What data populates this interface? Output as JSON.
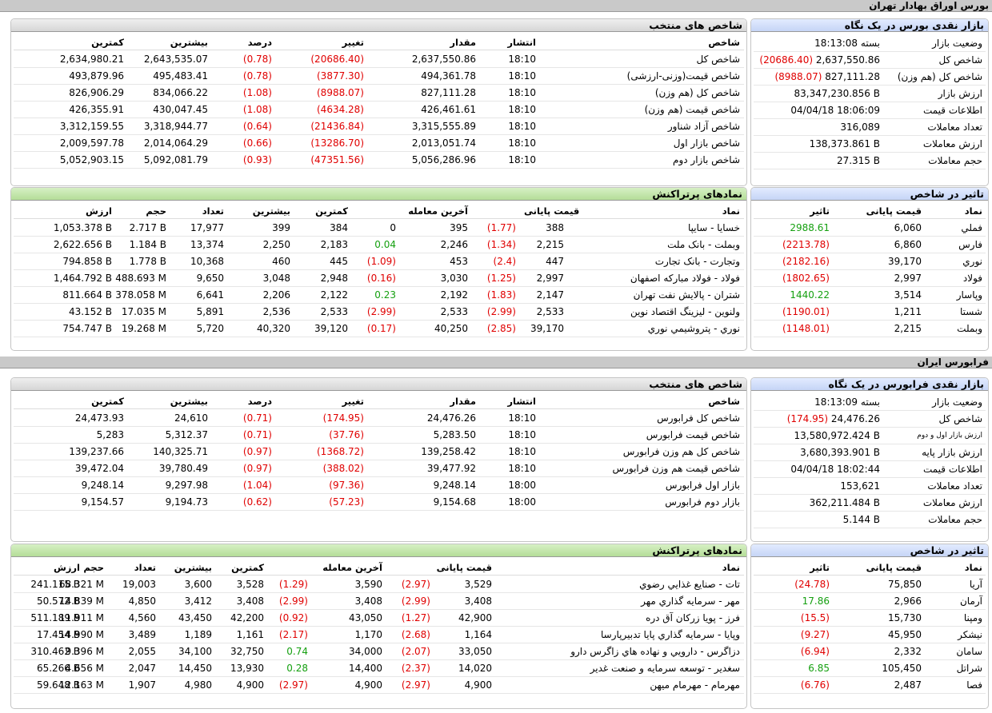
{
  "sections": [
    {
      "band_title": "بورس اوراق بهادار تهران",
      "snapshot": {
        "title": "بازار نقدی بورس در یک نگاه",
        "rows": [
          {
            "label": "وضعیت بازار",
            "value": "بسته 18:13:08"
          },
          {
            "label": "شاخص کل",
            "value": "2,637,550.86",
            "change": "(20686.40)"
          },
          {
            "label": "شاخص کل (هم وزن)",
            "value": "827,111.28",
            "change": "(8988.07)"
          },
          {
            "label": "ارزش بازار",
            "value": "83,347,230.856 B"
          },
          {
            "label": "اطلاعات قیمت",
            "value": "04/04/18 18:06:09"
          },
          {
            "label": "تعداد معاملات",
            "value": "316,089"
          },
          {
            "label": "ارزش معاملات",
            "value": "138,373.861 B"
          },
          {
            "label": "حجم معاملات",
            "value": "27.315 B"
          }
        ]
      },
      "indices": {
        "title": "شاخص های منتخب",
        "headers": [
          "شاخص",
          "انتشار",
          "مقدار",
          "تغییر",
          "درصد",
          "بیشترین",
          "کمترین"
        ],
        "rows": [
          [
            "شاخص کل",
            "18:10",
            "2,637,550.86",
            "(20686.40)",
            "(0.78)",
            "2,643,535.07",
            "2,634,980.21"
          ],
          [
            "شاخص قیمت(وزنی-ارزشی)",
            "18:10",
            "494,361.78",
            "(3877.30)",
            "(0.78)",
            "495,483.41",
            "493,879.96"
          ],
          [
            "شاخص کل (هم وزن)",
            "18:10",
            "827,111.28",
            "(8988.07)",
            "(1.08)",
            "834,066.22",
            "826,906.29"
          ],
          [
            "شاخص قیمت (هم وزن)",
            "18:10",
            "426,461.61",
            "(4634.28)",
            "(1.08)",
            "430,047.45",
            "426,355.91"
          ],
          [
            "شاخص آزاد شناور",
            "18:10",
            "3,315,555.89",
            "(21436.84)",
            "(0.64)",
            "3,318,944.77",
            "3,312,159.55"
          ],
          [
            "شاخص بازار اول",
            "18:10",
            "2,013,051.74",
            "(13286.70)",
            "(0.66)",
            "2,014,064.29",
            "2,009,597.78"
          ],
          [
            "شاخص بازار دوم",
            "18:10",
            "5,056,286.96",
            "(47351.56)",
            "(0.93)",
            "5,092,081.79",
            "5,052,903.15"
          ]
        ]
      },
      "impact": {
        "title": "تاثیر در شاخص",
        "headers": [
          "نماد",
          "قیمت پایانی",
          "تاثیر"
        ],
        "rows": [
          [
            "فملي",
            "6,060",
            "2988.61"
          ],
          [
            "فارس",
            "6,860",
            "(2213.78)"
          ],
          [
            "نوري",
            "39,170",
            "(2182.16)"
          ],
          [
            "فولاد",
            "2,997",
            "(1802.65)"
          ],
          [
            "وپاسار",
            "3,514",
            "1440.22"
          ],
          [
            "شستا",
            "1,211",
            "(1190.01)"
          ],
          [
            "وبملت",
            "2,215",
            "(1148.01)"
          ]
        ]
      },
      "active": {
        "title": "نمادهای پرتراکنش",
        "headers": [
          "نماد",
          "قیمت پایانی",
          "",
          "آخرین معامله",
          "",
          "کمترین",
          "بیشترین",
          "تعداد",
          "حجم",
          "ارزش"
        ],
        "rows": [
          [
            "خسایا - سایپا",
            "388",
            "(1.77)",
            "395",
            "0",
            "384",
            "399",
            "17,977",
            "2.717 B",
            "1,053.378 B"
          ],
          [
            "وبملت - بانک ملت",
            "2,215",
            "(1.34)",
            "2,246",
            "0.04",
            "2,183",
            "2,250",
            "13,374",
            "1.184 B",
            "2,622.656 B"
          ],
          [
            "وتجارت - بانک تجارت",
            "447",
            "(2.4)",
            "453",
            "(1.09)",
            "445",
            "460",
            "10,368",
            "1.778 B",
            "794.858 B"
          ],
          [
            "فولاد - فولاد مبارکه اصفهان",
            "2,997",
            "(1.25)",
            "3,030",
            "(0.16)",
            "2,948",
            "3,048",
            "9,650",
            "488.693 M",
            "1,464.792 B"
          ],
          [
            "شتران - پالایش نفت تهران",
            "2,147",
            "(1.83)",
            "2,192",
            "0.23",
            "2,122",
            "2,206",
            "6,641",
            "378.058 M",
            "811.664 B"
          ],
          [
            "ولنوین - لیزینگ اقتصاد نوین",
            "2,533",
            "(2.99)",
            "2,533",
            "(2.99)",
            "2,533",
            "2,536",
            "5,891",
            "17.035 M",
            "43.152 B"
          ],
          [
            "نوري - پتروشیمي نوري",
            "39,170",
            "(2.85)",
            "40,250",
            "(0.17)",
            "39,120",
            "40,320",
            "5,720",
            "19.268 M",
            "754.747 B"
          ]
        ]
      }
    },
    {
      "band_title": "فرابورس ایران",
      "snapshot": {
        "title": "بازار نقدی فرابورس در یک نگاه",
        "rows": [
          {
            "label": "وضعیت بازار",
            "value": "بسته 18:13:09"
          },
          {
            "label": "شاخص کل",
            "value": "24,476.26",
            "change": "(174.95)"
          },
          {
            "label": "ارزش بازار اول و دوم",
            "value": "13,580,972.424 B"
          },
          {
            "label": "ارزش بازار پایه",
            "value": "3,680,393.901 B"
          },
          {
            "label": "اطلاعات قیمت",
            "value": "04/04/18 18:02:44"
          },
          {
            "label": "تعداد معاملات",
            "value": "153,621"
          },
          {
            "label": "ارزش معاملات",
            "value": "362,211.484 B"
          },
          {
            "label": "حجم معاملات",
            "value": "5.144 B"
          }
        ]
      },
      "indices": {
        "title": "شاخص های منتخب",
        "headers": [
          "شاخص",
          "انتشار",
          "مقدار",
          "تغییر",
          "درصد",
          "بیشترین",
          "کمترین"
        ],
        "rows": [
          [
            "شاخص کل فرابورس",
            "18:10",
            "24,476.26",
            "(174.95)",
            "(0.71)",
            "24,610",
            "24,473.93"
          ],
          [
            "شاخص قیمت فرابورس",
            "18:10",
            "5,283.50",
            "(37.76)",
            "(0.71)",
            "5,312.37",
            "5,283"
          ],
          [
            "شاخص کل هم وزن فرابورس",
            "18:10",
            "139,258.42",
            "(1368.72)",
            "(0.97)",
            "140,325.71",
            "139,237.66"
          ],
          [
            "شاخص قیمت هم وزن فرابورس",
            "18:10",
            "39,477.92",
            "(388.02)",
            "(0.97)",
            "39,780.49",
            "39,472.04"
          ],
          [
            "بازار اول فرابورس",
            "18:00",
            "9,248.14",
            "(97.36)",
            "(1.04)",
            "9,297.98",
            "9,248.14"
          ],
          [
            "بازار دوم فرابورس",
            "18:00",
            "9,154.68",
            "(57.23)",
            "(0.62)",
            "9,194.73",
            "9,154.57"
          ]
        ]
      },
      "impact": {
        "title": "تاثیر در شاخص",
        "headers": [
          "نماد",
          "قیمت پایانی",
          "تاثیر"
        ],
        "rows": [
          [
            "آريا",
            "75,850",
            "(24.78)"
          ],
          [
            "آرمان",
            "2,966",
            "17.86"
          ],
          [
            "ومپنا",
            "15,730",
            "(15.5)"
          ],
          [
            "نيشکر",
            "45,950",
            "(9.27)"
          ],
          [
            "سامان",
            "2,332",
            "(6.94)"
          ],
          [
            "شراتل",
            "105,450",
            "6.85"
          ],
          [
            "فصا",
            "2,487",
            "(6.76)"
          ]
        ]
      },
      "active": {
        "title": "نمادهای پرتراکنش",
        "headers": [
          "نماد",
          "قیمت پایانی",
          "",
          "آخرین معامله",
          "",
          "کمترین",
          "بیشترین",
          "تعداد",
          "حجم",
          "ارزش"
        ],
        "rows": [
          [
            "تات - صنایع غذایي رضوي",
            "3,529",
            "(2.97)",
            "3,590",
            "(1.29)",
            "3,528",
            "3,600",
            "19,003",
            "68.321 M",
            "241.115 B"
          ],
          [
            "مهر - سرمایه گذاري مهر",
            "3,408",
            "(2.99)",
            "3,408",
            "(2.99)",
            "3,408",
            "3,412",
            "4,850",
            "14.839 M",
            "50.572 B"
          ],
          [
            "فرز - پویا زرکان آق دره",
            "42,900",
            "(1.27)",
            "43,050",
            "(0.92)",
            "42,200",
            "43,450",
            "4,560",
            "11.911 M",
            "511.189 B"
          ],
          [
            "وپایا - سرمایه گذاري پایا تدبیرپارسا",
            "1,164",
            "(2.68)",
            "1,170",
            "(2.17)",
            "1,161",
            "1,189",
            "3,489",
            "14.990 M",
            "17.454 B"
          ],
          [
            "دزاگرس - دارویي و نهاده هاي زاگرس دارو",
            "33,050",
            "(2.07)",
            "34,000",
            "0.74",
            "32,750",
            "34,100",
            "2,055",
            "9.396 M",
            "310.462 B"
          ],
          [
            "سغدیر - توسعه سرمایه و صنعت غدیر",
            "14,020",
            "(2.37)",
            "14,400",
            "0.28",
            "13,930",
            "14,450",
            "2,047",
            "4.656 M",
            "65.266 B"
          ],
          [
            "مهرمام - مهرمام میهن",
            "4,900",
            "(2.97)",
            "4,900",
            "(2.97)",
            "4,900",
            "4,980",
            "1,907",
            "12.163 M",
            "59.648 B"
          ]
        ]
      }
    }
  ]
}
